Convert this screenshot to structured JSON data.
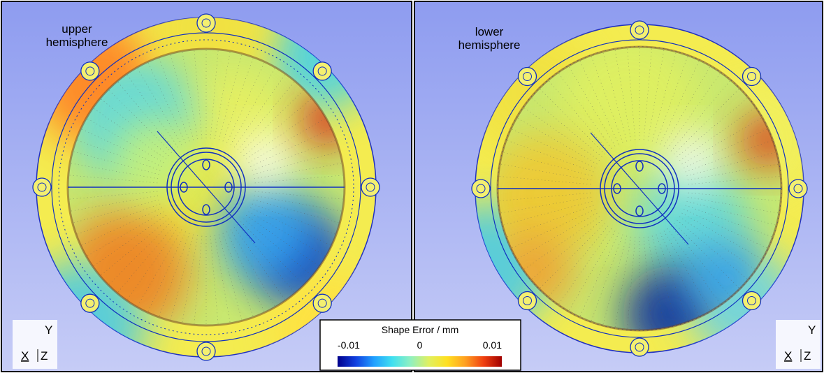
{
  "panels": [
    {
      "label": "upper hemisphere",
      "triad": {
        "y": "Y",
        "x": "X",
        "z": "Z"
      }
    },
    {
      "label": "lower hemisphere",
      "triad": {
        "y": "Y",
        "x": "X",
        "z": "Z"
      }
    }
  ],
  "colorbar": {
    "title": "Shape Error / mm",
    "ticks": [
      -0.01,
      0,
      0.01
    ],
    "colors": [
      "#00008b",
      "#1040e0",
      "#20a0ff",
      "#40e0f0",
      "#90f0c0",
      "#e0f060",
      "#ffe020",
      "#ffa020",
      "#f04010",
      "#a00000"
    ]
  }
}
